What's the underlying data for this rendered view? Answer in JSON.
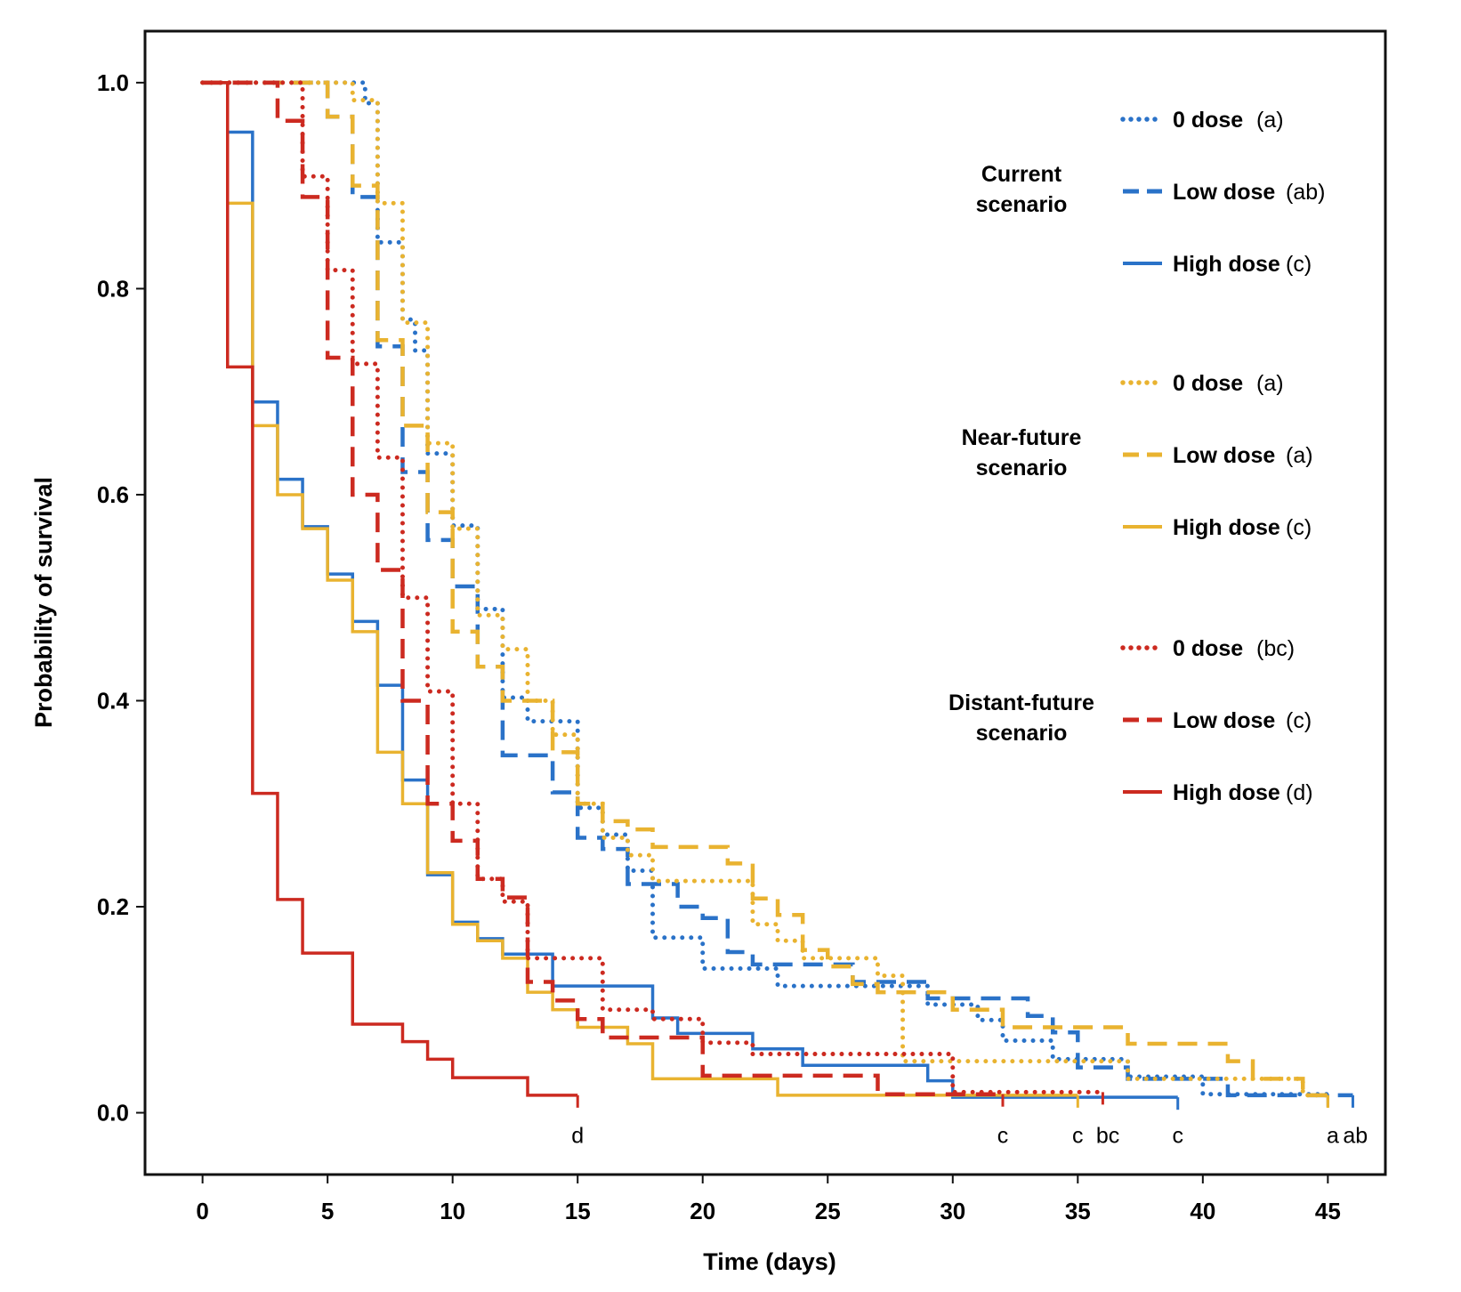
{
  "chart_data": {
    "type": "line",
    "subtype": "step (Kaplan-Meier survival)",
    "xlabel": "Time (days)",
    "ylabel": "Probability of survival",
    "xlim": [
      -2.3,
      47.3
    ],
    "ylim": [
      -0.06,
      1.05
    ],
    "xticks": [
      0,
      5,
      10,
      15,
      20,
      25,
      30,
      35,
      40,
      45
    ],
    "yticks": [
      "0.0",
      "0.2",
      "0.4",
      "0.6",
      "0.8",
      "1.0"
    ],
    "grid": false,
    "legend_position": "right",
    "colors": {
      "current": "#2a72c8",
      "near": "#e9b330",
      "distant": "#cc2a20"
    },
    "legend_groups": [
      {
        "scenario": [
          "Current",
          "scenario"
        ],
        "color": "#2a72c8",
        "items": [
          {
            "label": "0 dose",
            "sig": "(a)",
            "style": "dotted"
          },
          {
            "label": "Low dose",
            "sig": "(ab)",
            "style": "dashed"
          },
          {
            "label": "High dose",
            "sig": "(c)",
            "style": "solid"
          }
        ]
      },
      {
        "scenario": [
          "Near-future",
          "scenario"
        ],
        "color": "#e9b330",
        "items": [
          {
            "label": "0 dose",
            "sig": "(a)",
            "style": "dotted"
          },
          {
            "label": "Low dose",
            "sig": "(a)",
            "style": "dashed"
          },
          {
            "label": "High dose",
            "sig": "(c)",
            "style": "solid"
          }
        ]
      },
      {
        "scenario": [
          "Distant-future",
          "scenario"
        ],
        "color": "#cc2a20",
        "items": [
          {
            "label": "0 dose",
            "sig": "(bc)",
            "style": "dotted"
          },
          {
            "label": "Low dose",
            "sig": "(c)",
            "style": "dashed"
          },
          {
            "label": "High dose",
            "sig": "(d)",
            "style": "solid"
          }
        ]
      }
    ],
    "series": [
      {
        "scenario": "Current",
        "dose": "0 dose",
        "color": "#2a72c8",
        "style": "dotted",
        "end": 45,
        "steps": [
          [
            0,
            1
          ],
          [
            6.5,
            0.98
          ],
          [
            7,
            0.845
          ],
          [
            8,
            0.77
          ],
          [
            8.5,
            0.74
          ],
          [
            9,
            0.64
          ],
          [
            10,
            0.57
          ],
          [
            11,
            0.489
          ],
          [
            12,
            0.403
          ],
          [
            13,
            0.38
          ],
          [
            15,
            0.296
          ],
          [
            16,
            0.27
          ],
          [
            17,
            0.235
          ],
          [
            18,
            0.17
          ],
          [
            20,
            0.14
          ],
          [
            23,
            0.123
          ],
          [
            29,
            0.105
          ],
          [
            31,
            0.09
          ],
          [
            32,
            0.07
          ],
          [
            34,
            0.052
          ],
          [
            37,
            0.035
          ],
          [
            40,
            0.018
          ]
        ]
      },
      {
        "scenario": "Current",
        "dose": "Low dose",
        "color": "#2a72c8",
        "style": "dashed",
        "end": 46,
        "steps": [
          [
            0,
            1
          ],
          [
            5,
            0.967
          ],
          [
            6,
            0.889
          ],
          [
            7,
            0.744
          ],
          [
            8,
            0.622
          ],
          [
            9,
            0.556
          ],
          [
            10,
            0.511
          ],
          [
            11,
            0.433
          ],
          [
            12,
            0.347
          ],
          [
            14,
            0.311
          ],
          [
            15,
            0.267
          ],
          [
            16,
            0.256
          ],
          [
            17,
            0.222
          ],
          [
            19,
            0.2
          ],
          [
            20,
            0.189
          ],
          [
            21,
            0.156
          ],
          [
            22,
            0.144
          ],
          [
            26,
            0.127
          ],
          [
            29,
            0.111
          ],
          [
            33,
            0.094
          ],
          [
            34,
            0.078
          ],
          [
            35,
            0.044
          ],
          [
            37,
            0.033
          ],
          [
            41,
            0.017
          ]
        ]
      },
      {
        "scenario": "Current",
        "dose": "High dose",
        "color": "#2a72c8",
        "style": "solid",
        "end": 39,
        "steps": [
          [
            0,
            1
          ],
          [
            1,
            0.952
          ],
          [
            2,
            0.69
          ],
          [
            3,
            0.615
          ],
          [
            4,
            0.569
          ],
          [
            5,
            0.523
          ],
          [
            6,
            0.477
          ],
          [
            7,
            0.415
          ],
          [
            8,
            0.323
          ],
          [
            9,
            0.231
          ],
          [
            10,
            0.185
          ],
          [
            11,
            0.169
          ],
          [
            12,
            0.154
          ],
          [
            14,
            0.123
          ],
          [
            18,
            0.092
          ],
          [
            19,
            0.077
          ],
          [
            22,
            0.062
          ],
          [
            24,
            0.046
          ],
          [
            29,
            0.031
          ],
          [
            30,
            0.015
          ]
        ]
      },
      {
        "scenario": "Near-future",
        "dose": "0 dose",
        "color": "#e9b330",
        "style": "dotted",
        "end": 45,
        "steps": [
          [
            0,
            1
          ],
          [
            6,
            0.983
          ],
          [
            7,
            0.883
          ],
          [
            8,
            0.767
          ],
          [
            9,
            0.65
          ],
          [
            10,
            0.567
          ],
          [
            11,
            0.483
          ],
          [
            12,
            0.45
          ],
          [
            13,
            0.4
          ],
          [
            14,
            0.367
          ],
          [
            15,
            0.3
          ],
          [
            16,
            0.267
          ],
          [
            17,
            0.25
          ],
          [
            18,
            0.225
          ],
          [
            22,
            0.183
          ],
          [
            23,
            0.167
          ],
          [
            24,
            0.15
          ],
          [
            27,
            0.133
          ],
          [
            28,
            0.05
          ],
          [
            37,
            0.033
          ],
          [
            44,
            0.017
          ]
        ]
      },
      {
        "scenario": "Near-future",
        "dose": "Low dose",
        "color": "#e9b330",
        "style": "dashed",
        "end": 45,
        "steps": [
          [
            0,
            1
          ],
          [
            5,
            0.967
          ],
          [
            6,
            0.9
          ],
          [
            7,
            0.75
          ],
          [
            8,
            0.667
          ],
          [
            9,
            0.583
          ],
          [
            10,
            0.467
          ],
          [
            11,
            0.433
          ],
          [
            12,
            0.4
          ],
          [
            14,
            0.35
          ],
          [
            15,
            0.3
          ],
          [
            16,
            0.283
          ],
          [
            17,
            0.275
          ],
          [
            18,
            0.258
          ],
          [
            21,
            0.242
          ],
          [
            22,
            0.208
          ],
          [
            23,
            0.192
          ],
          [
            24,
            0.158
          ],
          [
            25,
            0.142
          ],
          [
            26,
            0.125
          ],
          [
            27,
            0.117
          ],
          [
            30,
            0.1
          ],
          [
            32,
            0.083
          ],
          [
            37,
            0.067
          ],
          [
            41,
            0.05
          ],
          [
            42,
            0.033
          ],
          [
            44,
            0.017
          ]
        ]
      },
      {
        "scenario": "Near-future",
        "dose": "High dose",
        "color": "#e9b330",
        "style": "solid",
        "end": 35,
        "steps": [
          [
            0,
            1
          ],
          [
            1,
            0.883
          ],
          [
            2,
            0.667
          ],
          [
            3,
            0.6
          ],
          [
            4,
            0.567
          ],
          [
            5,
            0.517
          ],
          [
            6,
            0.467
          ],
          [
            7,
            0.35
          ],
          [
            8,
            0.3
          ],
          [
            9,
            0.233
          ],
          [
            10,
            0.183
          ],
          [
            11,
            0.167
          ],
          [
            12,
            0.15
          ],
          [
            13,
            0.117
          ],
          [
            14,
            0.1
          ],
          [
            15,
            0.083
          ],
          [
            17,
            0.067
          ],
          [
            18,
            0.033
          ],
          [
            23,
            0.017
          ]
        ]
      },
      {
        "scenario": "Distant-future",
        "dose": "0 dose",
        "color": "#cc2a20",
        "style": "dotted",
        "end": 36,
        "steps": [
          [
            0,
            1
          ],
          [
            4,
            0.909
          ],
          [
            5,
            0.818
          ],
          [
            6,
            0.727
          ],
          [
            7,
            0.636
          ],
          [
            8,
            0.5
          ],
          [
            9,
            0.409
          ],
          [
            10,
            0.3
          ],
          [
            11,
            0.227
          ],
          [
            12,
            0.205
          ],
          [
            13,
            0.15
          ],
          [
            16,
            0.1
          ],
          [
            18,
            0.091
          ],
          [
            20,
            0.068
          ],
          [
            22,
            0.057
          ],
          [
            30,
            0.02
          ]
        ]
      },
      {
        "scenario": "Distant-future",
        "dose": "Low dose",
        "color": "#cc2a20",
        "style": "dashed",
        "end": 32,
        "steps": [
          [
            0,
            1
          ],
          [
            3,
            0.963
          ],
          [
            4,
            0.889
          ],
          [
            5,
            0.733
          ],
          [
            6,
            0.6
          ],
          [
            7,
            0.527
          ],
          [
            8,
            0.4
          ],
          [
            9,
            0.3
          ],
          [
            10,
            0.264
          ],
          [
            11,
            0.227
          ],
          [
            12,
            0.209
          ],
          [
            13,
            0.127
          ],
          [
            14,
            0.109
          ],
          [
            15,
            0.091
          ],
          [
            16,
            0.073
          ],
          [
            20,
            0.036
          ],
          [
            27,
            0.018
          ]
        ]
      },
      {
        "scenario": "Distant-future",
        "dose": "High dose",
        "color": "#cc2a20",
        "style": "solid",
        "end": 15,
        "steps": [
          [
            0,
            1
          ],
          [
            1,
            0.724
          ],
          [
            2,
            0.31
          ],
          [
            3,
            0.207
          ],
          [
            4,
            0.155
          ],
          [
            6,
            0.086
          ],
          [
            8,
            0.069
          ],
          [
            9,
            0.052
          ],
          [
            10,
            0.034
          ],
          [
            13,
            0.017
          ]
        ]
      }
    ],
    "annotations": [
      {
        "text": "d",
        "x": 15
      },
      {
        "text": "c",
        "x": 32
      },
      {
        "text": "c",
        "x": 35
      },
      {
        "text": "bc",
        "x": 36.2
      },
      {
        "text": "c",
        "x": 39
      },
      {
        "text": "a",
        "x": 45.2
      },
      {
        "text": "ab",
        "x": 46.1
      }
    ]
  }
}
